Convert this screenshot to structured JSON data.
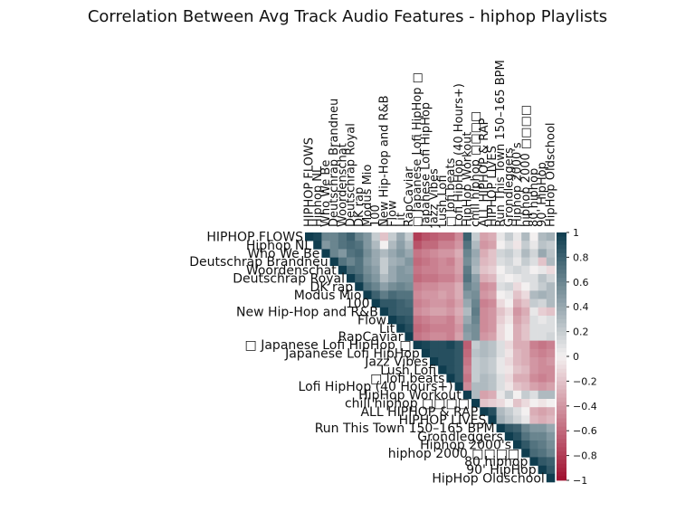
{
  "chart_data": {
    "type": "heatmap",
    "title": "Correlation Between Avg Track Audio Features - hiphop Playlists",
    "labels": [
      "HIPHOP FLOWS",
      "Hiphop NL",
      "Who We Be",
      "Deutschrap Brandneu",
      "Woordenschat",
      "Deutschrap Royal",
      "DK rap",
      "Modus Mio",
      "100",
      "New Hip-Hop and R&B",
      "Flow",
      "Lit",
      "RapCaviar",
      "□ Japanese Lofi HipHop □",
      "Japanese Lofi HipHop",
      "Jazz Vibes",
      "Lush Lofi",
      "□ lofi beats",
      "Lofi HipHop (40 Hours+)",
      "HipHop Workout",
      "chill hiphop □□□□",
      "ALL HIPHOP & RAP",
      "HIPHOP LIVES",
      "Run This Town 150–165 BPM",
      "Grondleggers",
      "Hiphop 2000's",
      "hiphop 2000 □□□□",
      "80 hiphop",
      "90' HipHop",
      "HipHop Oldschool"
    ],
    "colorbar": {
      "min": -1,
      "max": 1,
      "ticks": [
        "1",
        "0.8",
        "0.6",
        "0.4",
        "0.2",
        "0",
        "−0.2",
        "−0.4",
        "−0.6",
        "−0.8",
        "−1"
      ]
    },
    "colors": {
      "negative": "#a0102f",
      "neutral": "#f3f0f0",
      "positive": "#0f3d4f"
    },
    "mask": "lower-triangle",
    "matrix": [
      [
        1.0,
        0.95,
        0.6,
        0.6,
        0.7,
        0.8,
        0.6,
        0.5,
        0.2,
        -0.2,
        0.2,
        0.4,
        0.2,
        -0.8,
        -0.7,
        -0.65,
        -0.6,
        -0.6,
        -0.45,
        0.8,
        0.2,
        -0.35,
        -0.3,
        0.05,
        0.2,
        0.05,
        0.3,
        0.0,
        0.3,
        0.35
      ],
      [
        0.95,
        1.0,
        0.5,
        0.6,
        0.7,
        0.75,
        0.7,
        0.5,
        0.3,
        0.0,
        0.3,
        0.45,
        0.3,
        -0.7,
        -0.6,
        -0.6,
        -0.5,
        -0.5,
        -0.4,
        0.7,
        0.3,
        -0.4,
        -0.35,
        0.0,
        0.1,
        -0.05,
        0.2,
        0.05,
        0.25,
        0.2
      ],
      [
        0.6,
        0.5,
        1.0,
        0.6,
        0.5,
        0.7,
        0.75,
        0.55,
        0.4,
        0.3,
        0.4,
        0.5,
        0.4,
        -0.55,
        -0.5,
        -0.45,
        -0.4,
        -0.4,
        -0.3,
        0.6,
        0.4,
        -0.3,
        -0.2,
        0.15,
        0.2,
        0.1,
        0.3,
        0.15,
        0.4,
        0.25
      ],
      [
        0.6,
        0.6,
        0.6,
        1.0,
        0.7,
        0.6,
        0.7,
        0.5,
        0.4,
        0.2,
        0.35,
        0.4,
        0.5,
        -0.6,
        -0.55,
        -0.5,
        -0.45,
        -0.5,
        -0.35,
        0.55,
        0.35,
        -0.25,
        -0.2,
        0.1,
        0.15,
        0.05,
        0.2,
        0.1,
        -0.2,
        0.3
      ],
      [
        0.7,
        0.7,
        0.5,
        0.7,
        1.0,
        0.75,
        0.7,
        0.55,
        0.45,
        0.2,
        0.4,
        0.5,
        0.45,
        -0.55,
        -0.5,
        -0.5,
        -0.45,
        -0.45,
        -0.35,
        0.65,
        0.3,
        -0.2,
        -0.15,
        0.0,
        0.1,
        0.15,
        0.1,
        0.0,
        0.05,
        -0.1
      ],
      [
        0.8,
        0.75,
        0.7,
        0.6,
        0.75,
        1.0,
        0.8,
        0.6,
        0.5,
        0.3,
        0.4,
        0.5,
        0.5,
        -0.6,
        -0.55,
        -0.55,
        -0.5,
        -0.5,
        -0.4,
        0.7,
        0.45,
        -0.3,
        -0.25,
        0.05,
        0.0,
        0.05,
        0.1,
        0.1,
        0.25,
        0.15
      ],
      [
        0.6,
        0.7,
        0.75,
        0.7,
        0.7,
        0.8,
        1.0,
        0.7,
        0.6,
        0.45,
        0.55,
        0.6,
        0.55,
        -0.5,
        -0.45,
        -0.45,
        -0.4,
        -0.4,
        -0.3,
        0.6,
        0.5,
        -0.45,
        -0.4,
        0.1,
        0.15,
        -0.1,
        0.0,
        0.1,
        0.2,
        0.3
      ],
      [
        0.5,
        0.5,
        0.55,
        0.5,
        0.55,
        0.6,
        0.7,
        1.0,
        0.8,
        0.65,
        0.75,
        0.7,
        0.7,
        -0.45,
        -0.4,
        -0.4,
        -0.35,
        -0.4,
        -0.3,
        0.5,
        0.55,
        -0.4,
        -0.35,
        0.0,
        0.05,
        -0.2,
        -0.1,
        0.3,
        0.35,
        0.3
      ],
      [
        0.2,
        0.3,
        0.4,
        0.4,
        0.45,
        0.5,
        0.6,
        0.8,
        1.0,
        0.85,
        0.85,
        0.8,
        0.75,
        -0.5,
        -0.45,
        -0.4,
        -0.4,
        -0.45,
        -0.35,
        0.4,
        0.6,
        -0.5,
        -0.45,
        -0.1,
        0.0,
        -0.3,
        -0.2,
        0.2,
        0.15,
        0.3
      ],
      [
        -0.2,
        0.0,
        0.3,
        0.2,
        0.2,
        0.3,
        0.45,
        0.65,
        0.85,
        1.0,
        0.85,
        0.8,
        0.8,
        -0.45,
        -0.4,
        -0.35,
        -0.35,
        -0.4,
        -0.3,
        0.3,
        0.65,
        -0.45,
        -0.4,
        -0.2,
        -0.1,
        -0.4,
        -0.3,
        0.05,
        -0.15,
        -0.2
      ],
      [
        0.2,
        0.3,
        0.4,
        0.35,
        0.4,
        0.4,
        0.55,
        0.75,
        0.85,
        0.85,
        1.0,
        0.9,
        0.85,
        -0.55,
        -0.5,
        -0.45,
        -0.45,
        -0.5,
        -0.35,
        0.4,
        0.6,
        -0.45,
        -0.4,
        -0.15,
        -0.05,
        -0.35,
        -0.25,
        0.1,
        0.05,
        0.1
      ],
      [
        0.4,
        0.45,
        0.5,
        0.4,
        0.5,
        0.5,
        0.6,
        0.7,
        0.8,
        0.8,
        0.9,
        1.0,
        0.9,
        -0.6,
        -0.55,
        -0.5,
        -0.5,
        -0.5,
        -0.4,
        0.5,
        0.55,
        -0.45,
        -0.4,
        -0.1,
        0.0,
        -0.3,
        -0.2,
        0.1,
        0.1,
        0.1
      ],
      [
        0.2,
        0.3,
        0.4,
        0.5,
        0.45,
        0.5,
        0.55,
        0.7,
        0.75,
        0.8,
        0.85,
        0.9,
        1.0,
        -0.55,
        -0.5,
        -0.45,
        -0.45,
        -0.5,
        -0.35,
        0.45,
        0.55,
        -0.4,
        -0.35,
        -0.1,
        0.0,
        -0.3,
        -0.2,
        0.1,
        0.1,
        0.15
      ],
      [
        -0.8,
        -0.7,
        -0.55,
        -0.6,
        -0.55,
        -0.6,
        -0.5,
        -0.45,
        -0.5,
        -0.45,
        -0.55,
        -0.6,
        -0.55,
        1.0,
        0.95,
        0.9,
        0.9,
        0.95,
        0.85,
        -0.65,
        0.2,
        0.3,
        0.25,
        0.1,
        -0.1,
        -0.3,
        -0.3,
        -0.5,
        -0.55,
        -0.5
      ],
      [
        -0.7,
        -0.6,
        -0.5,
        -0.55,
        -0.5,
        -0.55,
        -0.45,
        -0.4,
        -0.45,
        -0.4,
        -0.5,
        -0.55,
        -0.5,
        0.95,
        1.0,
        0.9,
        0.9,
        0.9,
        0.85,
        -0.6,
        0.25,
        0.3,
        0.25,
        0.1,
        -0.05,
        -0.25,
        -0.3,
        -0.45,
        -0.5,
        -0.45
      ],
      [
        -0.65,
        -0.6,
        -0.45,
        -0.5,
        -0.5,
        -0.55,
        -0.45,
        -0.4,
        -0.4,
        -0.35,
        -0.45,
        -0.5,
        -0.45,
        0.9,
        0.9,
        1.0,
        0.9,
        0.9,
        0.85,
        -0.55,
        0.2,
        0.25,
        0.2,
        0.05,
        -0.1,
        -0.25,
        -0.3,
        -0.4,
        -0.45,
        -0.4
      ],
      [
        -0.6,
        -0.5,
        -0.4,
        -0.45,
        -0.45,
        -0.5,
        -0.4,
        -0.35,
        -0.4,
        -0.35,
        -0.45,
        -0.5,
        -0.45,
        0.9,
        0.9,
        0.9,
        1.0,
        0.9,
        0.85,
        -0.5,
        0.2,
        0.25,
        0.2,
        0.05,
        -0.05,
        -0.2,
        -0.25,
        -0.4,
        -0.45,
        -0.45
      ],
      [
        -0.6,
        -0.5,
        -0.4,
        -0.5,
        -0.45,
        -0.5,
        -0.4,
        -0.4,
        -0.45,
        -0.4,
        -0.5,
        -0.5,
        -0.5,
        0.95,
        0.9,
        0.9,
        0.9,
        1.0,
        0.85,
        -0.55,
        0.2,
        0.3,
        0.25,
        0.1,
        -0.1,
        -0.3,
        -0.3,
        -0.45,
        -0.5,
        -0.45
      ],
      [
        -0.45,
        -0.4,
        -0.3,
        -0.35,
        -0.35,
        -0.4,
        -0.3,
        -0.3,
        -0.35,
        -0.3,
        -0.35,
        -0.4,
        -0.35,
        0.85,
        0.85,
        0.85,
        0.85,
        0.85,
        1.0,
        -0.45,
        0.3,
        0.3,
        0.25,
        0.1,
        -0.05,
        -0.2,
        -0.25,
        -0.35,
        -0.4,
        -0.35
      ],
      [
        0.8,
        0.7,
        0.6,
        0.55,
        0.65,
        0.7,
        0.6,
        0.5,
        0.4,
        0.3,
        0.4,
        0.5,
        0.45,
        -0.65,
        -0.6,
        -0.55,
        -0.5,
        -0.55,
        -0.45,
        1.0,
        0.3,
        -0.35,
        -0.3,
        0.05,
        0.2,
        0.0,
        0.2,
        0.1,
        0.3,
        0.3
      ],
      [
        0.2,
        0.3,
        0.4,
        0.35,
        0.3,
        0.45,
        0.5,
        0.55,
        0.6,
        0.65,
        0.6,
        0.55,
        0.55,
        0.2,
        0.25,
        0.2,
        0.2,
        0.2,
        0.3,
        0.3,
        1.0,
        -0.2,
        -0.15,
        -0.1,
        0.0,
        -0.2,
        -0.1,
        0.0,
        -0.05,
        0.0
      ],
      [
        -0.35,
        -0.4,
        -0.3,
        -0.25,
        -0.2,
        -0.3,
        -0.45,
        -0.4,
        -0.5,
        -0.45,
        -0.45,
        -0.45,
        -0.4,
        0.3,
        0.3,
        0.25,
        0.25,
        0.3,
        0.3,
        -0.35,
        -0.2,
        1.0,
        0.9,
        0.3,
        0.2,
        0.1,
        0.0,
        -0.3,
        -0.35,
        -0.3
      ],
      [
        -0.3,
        -0.35,
        -0.2,
        -0.2,
        -0.15,
        -0.25,
        -0.4,
        -0.35,
        -0.45,
        -0.4,
        -0.4,
        -0.4,
        -0.35,
        0.25,
        0.25,
        0.2,
        0.2,
        0.25,
        0.25,
        -0.3,
        -0.15,
        0.9,
        1.0,
        0.35,
        0.25,
        0.15,
        0.05,
        -0.25,
        -0.3,
        -0.25
      ],
      [
        0.05,
        0.0,
        0.15,
        0.1,
        0.0,
        0.05,
        0.1,
        0.0,
        -0.1,
        -0.2,
        -0.15,
        -0.1,
        -0.1,
        0.1,
        0.1,
        0.05,
        0.05,
        0.1,
        0.1,
        0.05,
        -0.1,
        0.3,
        0.35,
        1.0,
        0.85,
        0.8,
        0.6,
        0.5,
        0.5,
        0.4
      ],
      [
        0.2,
        0.1,
        0.2,
        0.15,
        0.1,
        0.0,
        0.15,
        0.05,
        0.0,
        -0.1,
        -0.05,
        0.0,
        0.0,
        -0.1,
        -0.05,
        -0.1,
        -0.05,
        -0.1,
        -0.05,
        0.2,
        0.0,
        0.2,
        0.25,
        0.85,
        1.0,
        0.9,
        0.7,
        0.6,
        0.6,
        0.5
      ],
      [
        0.05,
        -0.05,
        0.1,
        0.05,
        0.15,
        0.05,
        -0.1,
        -0.2,
        -0.3,
        -0.4,
        -0.35,
        -0.3,
        -0.3,
        -0.3,
        -0.25,
        -0.25,
        -0.2,
        -0.3,
        -0.2,
        0.0,
        -0.2,
        0.1,
        0.15,
        0.8,
        0.9,
        1.0,
        0.85,
        0.7,
        0.65,
        0.55
      ],
      [
        0.3,
        0.2,
        0.3,
        0.2,
        0.1,
        0.1,
        0.0,
        -0.1,
        -0.2,
        -0.3,
        -0.25,
        -0.2,
        -0.2,
        -0.3,
        -0.3,
        -0.3,
        -0.25,
        -0.3,
        -0.25,
        0.2,
        -0.1,
        0.0,
        0.05,
        0.6,
        0.7,
        0.85,
        1.0,
        0.75,
        0.7,
        0.6
      ],
      [
        0.0,
        0.05,
        0.15,
        0.1,
        0.0,
        0.1,
        0.1,
        0.3,
        0.2,
        0.05,
        0.1,
        0.1,
        0.1,
        -0.5,
        -0.45,
        -0.4,
        -0.4,
        -0.45,
        -0.35,
        0.1,
        0.0,
        -0.3,
        -0.25,
        0.5,
        0.6,
        0.7,
        0.75,
        1.0,
        0.85,
        0.8
      ],
      [
        0.3,
        0.25,
        0.4,
        -0.2,
        0.05,
        0.25,
        0.2,
        0.35,
        0.15,
        -0.15,
        0.05,
        0.1,
        0.1,
        -0.55,
        -0.5,
        -0.45,
        -0.45,
        -0.5,
        -0.4,
        0.3,
        -0.05,
        -0.35,
        -0.3,
        0.5,
        0.6,
        0.65,
        0.7,
        0.85,
        1.0,
        0.85
      ],
      [
        0.35,
        0.2,
        0.25,
        0.3,
        -0.1,
        0.15,
        0.3,
        0.3,
        0.3,
        -0.2,
        0.1,
        0.1,
        0.15,
        -0.5,
        -0.45,
        -0.4,
        -0.45,
        -0.45,
        -0.35,
        0.3,
        0.0,
        -0.3,
        -0.25,
        0.4,
        0.5,
        0.55,
        0.6,
        0.8,
        0.85,
        1.0
      ]
    ]
  }
}
